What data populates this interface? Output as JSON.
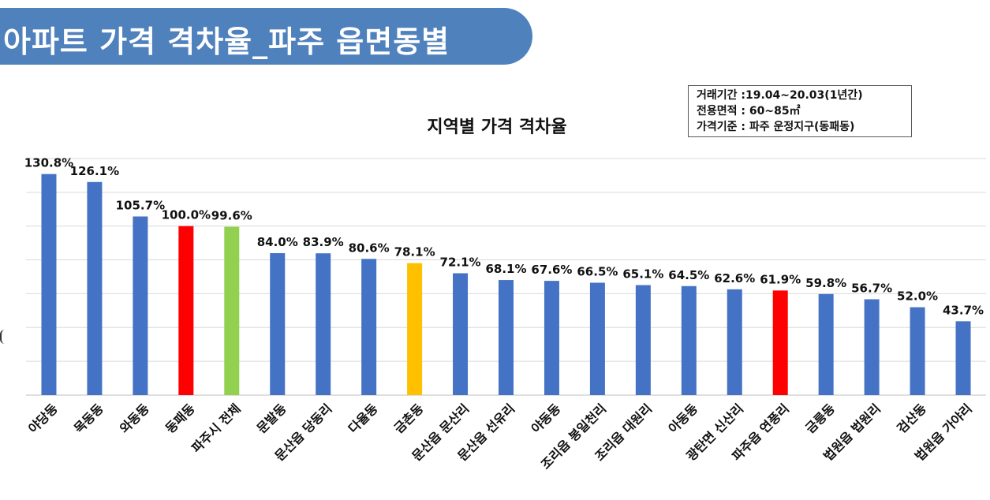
{
  "header": {
    "title": "아파트 가격 격차율_파주 읍면동별"
  },
  "info_box": {
    "lines": [
      "거래기간 :19.04~20.03(1년간)",
      "전용면적 : 60~85㎡",
      "가격기준 : 파주 운정지구(동패동)"
    ]
  },
  "colors": {
    "banner": "#4f81bd",
    "bar_default": "#4472c4",
    "bar_reference": "#ff0000",
    "bar_city_total": "#92d050",
    "bar_highlight": "#ffc000",
    "gridline": "#d9d9d9"
  },
  "chart_data": {
    "type": "bar",
    "title": "지역별 가격 격차율",
    "xlabel": "",
    "ylabel": "",
    "ylim": [
      0,
      140
    ],
    "grid": true,
    "categories": [
      "야당동",
      "목동동",
      "와동동",
      "동패동",
      "파주시 전체",
      "문발동",
      "문산읍 당동리",
      "다율동",
      "금촌동",
      "문산읍 문산리",
      "문산읍 선유리",
      "야동동",
      "조리읍 봉일천리",
      "조리읍 대원리",
      "아동동",
      "광탄면 신산리",
      "파주읍 연풍리",
      "금릉동",
      "법원읍 법원리",
      "검산동",
      "법원읍 가야리"
    ],
    "values": [
      130.8,
      126.1,
      105.7,
      100.0,
      99.6,
      84.0,
      83.9,
      80.6,
      78.1,
      72.1,
      68.1,
      67.6,
      66.5,
      65.1,
      64.5,
      62.6,
      61.9,
      59.8,
      56.7,
      52.0,
      43.7
    ],
    "data_labels": [
      "130.8%",
      "126.1%",
      "105.7%",
      "100.0%",
      "99.6%",
      "84.0%",
      "83.9%",
      "80.6%",
      "78.1%",
      "72.1%",
      "68.1%",
      "67.6%",
      "66.5%",
      "65.1%",
      "64.5%",
      "62.6%",
      "61.9%",
      "59.8%",
      "56.7%",
      "52.0%",
      "43.7%"
    ],
    "bar_colors": [
      "blue",
      "blue",
      "blue",
      "red",
      "green",
      "blue",
      "blue",
      "blue",
      "yellow",
      "blue",
      "blue",
      "blue",
      "blue",
      "blue",
      "blue",
      "blue",
      "red",
      "blue",
      "blue",
      "blue",
      "blue"
    ]
  }
}
